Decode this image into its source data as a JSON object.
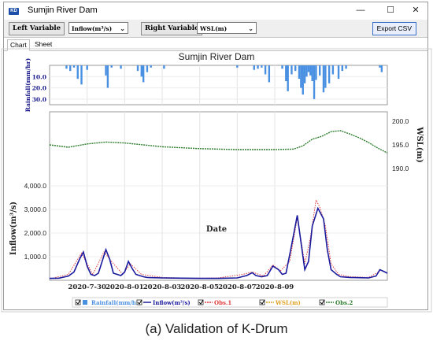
{
  "window": {
    "title": "Sumjin River Dam",
    "app_icon_label": "KD",
    "controls": {
      "minimize": "—",
      "maximize": "☐",
      "close": "✕"
    }
  },
  "toolbar": {
    "left_variable_label": "Left Variable",
    "left_variable_value": "Inflow(m³/s)",
    "right_variable_label": "Right Variable",
    "right_variable_value": "WSL(m)",
    "export_label": "Export CSV"
  },
  "tabs": [
    {
      "label": "Chart",
      "active": true
    },
    {
      "label": "Sheet",
      "active": false
    }
  ],
  "caption": "(a) Validation of K-Drum",
  "chart_data": {
    "type": "line",
    "title": "Sumjin River Dam",
    "xlabel": "Date",
    "x_ticks": [
      "2020-7-30",
      "2020-8-01",
      "2020-8-03",
      "2020-8-05",
      "2020-8-07",
      "2020-8-09"
    ],
    "x_range_days": [
      0,
      18
    ],
    "colors": {
      "rainfall": "#4a90e2",
      "inflow": "#1a1a9e",
      "obs1": "#e03a3a",
      "wsl": "#2e7d2e",
      "axis_label": "#1a1a8c"
    },
    "rainfall": {
      "ylabel": "Rainfall(mm/hr)",
      "y_ticks": [
        "10.0",
        "20.0",
        "30.0"
      ],
      "ylim": [
        0,
        35
      ],
      "t": [
        0.9,
        1.1,
        1.3,
        1.5,
        1.7,
        2.0,
        3.0,
        3.1,
        3.3,
        3.8,
        4.7,
        4.9,
        5.0,
        5.2,
        5.4,
        6.1,
        10.0,
        10.9,
        11.1,
        11.3,
        11.5,
        11.7,
        12.4,
        12.6,
        12.7,
        12.9,
        13.1,
        13.3,
        13.4,
        13.5,
        13.6,
        13.7,
        13.8,
        13.9,
        14.0,
        14.1,
        14.2,
        14.4,
        14.6,
        14.7,
        14.9,
        15.1,
        15.4,
        15.6,
        15.8,
        17.6,
        17.7
      ],
      "v": [
        3,
        5,
        2,
        12,
        17,
        4,
        9,
        20,
        2,
        3,
        5,
        10,
        15,
        6,
        2,
        3,
        2,
        4,
        3,
        2,
        8,
        15,
        3,
        14,
        23,
        8,
        5,
        12,
        20,
        26,
        16,
        10,
        6,
        9,
        14,
        30,
        13,
        9,
        24,
        20,
        16,
        8,
        12,
        5,
        3,
        2,
        6
      ]
    },
    "wsl": {
      "ylabel": "WSL(m)",
      "y_ticks": [
        "190.0",
        "195.0",
        "200.0"
      ],
      "ylim": [
        188,
        202
      ],
      "t": [
        0,
        1,
        2,
        3,
        4,
        5,
        6,
        7,
        8,
        9,
        10,
        11,
        12,
        13,
        13.5,
        14,
        14.5,
        15,
        15.5,
        16,
        16.5,
        17,
        17.5,
        18
      ],
      "v": [
        195.0,
        194.5,
        195.2,
        195.6,
        195.4,
        195.0,
        194.6,
        194.4,
        194.2,
        194.1,
        194.0,
        194.0,
        194.0,
        194.1,
        194.8,
        196.2,
        196.8,
        197.8,
        198.0,
        197.3,
        196.5,
        195.5,
        194.3,
        193.3
      ]
    },
    "inflow": {
      "ylabel": "Inflow(m³/s)",
      "y_ticks": [
        "1,000.0",
        "2,000.0",
        "3,000.0",
        "4,000.0"
      ],
      "ylim": [
        0,
        4200
      ],
      "t": [
        0,
        0.5,
        1.0,
        1.3,
        1.6,
        1.8,
        2.0,
        2.2,
        2.4,
        2.6,
        2.8,
        3.0,
        3.2,
        3.4,
        3.6,
        3.8,
        4.0,
        4.2,
        4.4,
        4.6,
        4.8,
        5.0,
        5.2,
        5.5,
        6.0,
        7,
        8,
        9,
        10,
        10.5,
        10.8,
        11.0,
        11.3,
        11.6,
        11.9,
        12.2,
        12.4,
        12.6,
        12.9,
        13.2,
        13.4,
        13.6,
        13.8,
        14.0,
        14.3,
        14.6,
        14.8,
        15.0,
        15.3,
        15.5,
        15.8,
        16.0,
        16.5,
        17.0,
        17.4,
        17.6,
        17.8,
        18.0
      ],
      "v": [
        80,
        90,
        180,
        350,
        900,
        1200,
        600,
        250,
        200,
        300,
        800,
        1300,
        900,
        300,
        250,
        200,
        350,
        800,
        500,
        250,
        200,
        150,
        120,
        110,
        100,
        90,
        80,
        80,
        100,
        200,
        320,
        200,
        150,
        200,
        600,
        450,
        250,
        300,
        1500,
        2750,
        1600,
        450,
        800,
        2300,
        3050,
        2600,
        1300,
        450,
        250,
        150,
        130,
        120,
        110,
        100,
        180,
        450,
        380,
        300
      ]
    },
    "obs1": {
      "t": [
        0.3,
        1.0,
        1.7,
        2.3,
        2.9,
        3.3,
        3.9,
        4.3,
        4.9,
        6,
        7,
        8,
        9,
        10.3,
        10.8,
        11.4,
        11.9,
        12.3,
        12.8,
        13.2,
        13.6,
        13.9,
        14.2,
        14.4,
        14.7,
        15.0,
        15.4,
        16.0,
        17.0,
        17.6
      ],
      "v": [
        120,
        250,
        1150,
        250,
        1200,
        800,
        250,
        700,
        250,
        120,
        100,
        90,
        100,
        250,
        350,
        180,
        650,
        400,
        800,
        2650,
        700,
        1800,
        3400,
        3100,
        2300,
        700,
        250,
        150,
        120,
        380
      ]
    },
    "legend": [
      {
        "label": "Rainfall(mm/hr)",
        "key": "rainfall"
      },
      {
        "label": "Inflow(m³/s)",
        "key": "inflow"
      },
      {
        "label": "Obs.1",
        "key": "obs1"
      },
      {
        "label": "WSL(m)",
        "key": "wsl_sim"
      },
      {
        "label": "Obs.2",
        "key": "obs2"
      }
    ]
  }
}
